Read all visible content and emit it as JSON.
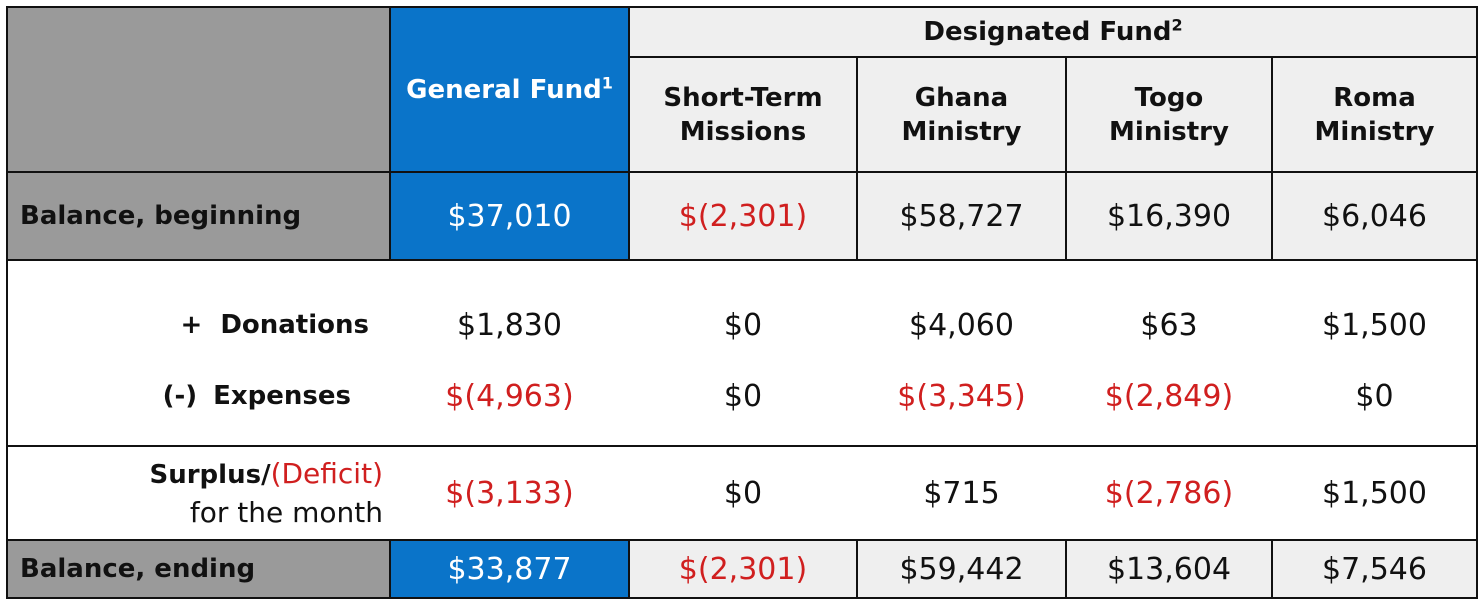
{
  "header": {
    "general_fund": "General Fund",
    "general_fund_sup": "1",
    "designated_fund": "Designated Fund",
    "designated_fund_sup": "2",
    "columns": [
      {
        "line1": "Short-Term",
        "line2": "Missions"
      },
      {
        "line1": "Ghana",
        "line2": "Ministry"
      },
      {
        "line1": "Togo",
        "line2": "Ministry"
      },
      {
        "line1": "Roma",
        "line2": "Ministry"
      }
    ]
  },
  "rows": {
    "beginning": {
      "label": "Balance, beginning",
      "general": "$37,010",
      "values": [
        "$(2,301)",
        "$58,727",
        "$16,390",
        "$6,046"
      ]
    },
    "donations": {
      "prefix": "+",
      "label": "Donations",
      "general": "$1,830",
      "values": [
        "$0",
        "$4,060",
        "$63",
        "$1,500"
      ]
    },
    "expenses": {
      "prefix": "(-)",
      "label": "Expenses",
      "general": "$(4,963)",
      "values": [
        "$0",
        "$(3,345)",
        "$(2,849)",
        "$0"
      ]
    },
    "surplus": {
      "label_a": "Surplus/",
      "label_b": "(Deficit)",
      "label_c": "for the month",
      "general": "$(3,133)",
      "values": [
        "$0",
        "$715",
        "$(2,786)",
        "$1,500"
      ]
    },
    "ending": {
      "label": "Balance, ending",
      "general": "$33,877",
      "values": [
        "$(2,301)",
        "$59,442",
        "$13,604",
        "$7,546"
      ]
    }
  },
  "colors": {
    "blue": "#0a74c9",
    "gray": "#9a9a9a",
    "light": "#efefef",
    "negative": "#d01f1f"
  }
}
